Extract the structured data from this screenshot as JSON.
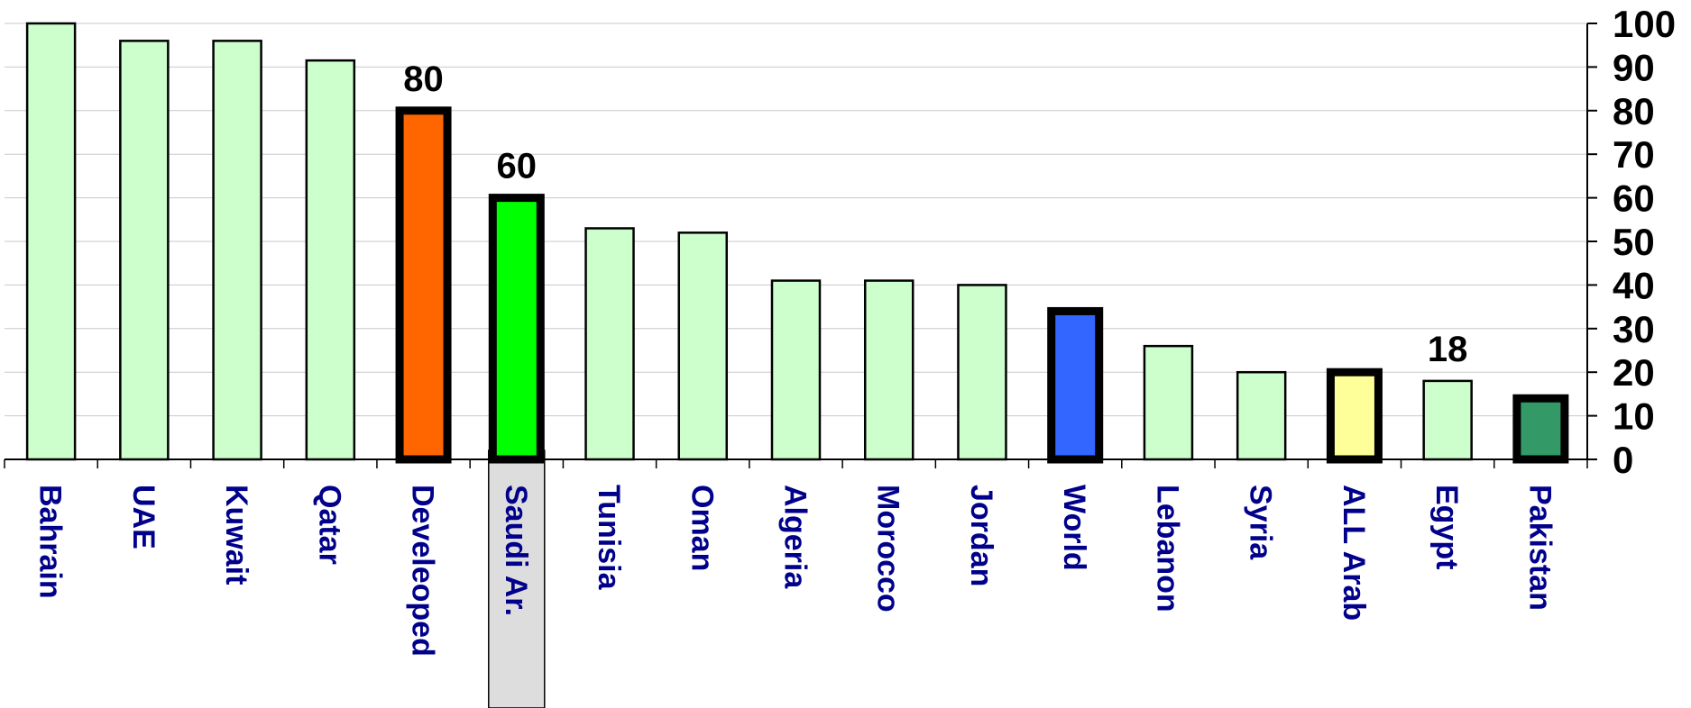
{
  "chart_data": {
    "type": "bar",
    "categories": [
      "Bahrain",
      "UAE",
      "Kuwait",
      "Qatar",
      "Develeoped",
      "Saudi Ar.",
      "Tunisia",
      "Oman",
      "Algeria",
      "Morocco",
      "Jordan",
      "World",
      "Lebanon",
      "Syria",
      "ALL Arab",
      "Egypt",
      "Pakistan"
    ],
    "values": [
      100,
      96,
      96,
      91.5,
      80,
      60,
      53,
      52,
      41,
      41,
      40,
      34,
      26,
      20,
      20,
      18,
      14
    ],
    "bar_colors": [
      "#CCFFCC",
      "#CCFFCC",
      "#CCFFCC",
      "#CCFFCC",
      "#FF6600",
      "#00FF00",
      "#CCFFCC",
      "#CCFFCC",
      "#CCFFCC",
      "#CCFFCC",
      "#CCFFCC",
      "#3366FF",
      "#CCFFCC",
      "#CCFFCC",
      "#FFFF99",
      "#CCFFCC",
      "#339966"
    ],
    "highlighted": [
      "Develeoped",
      "Saudi Ar.",
      "World",
      "ALL Arab",
      "Pakistan"
    ],
    "selected_category": "Saudi Ar.",
    "data_labels": [
      {
        "category": "Develeoped",
        "text": "80"
      },
      {
        "category": "Saudi Ar.",
        "text": "60"
      },
      {
        "category": "Egypt",
        "text": "18"
      }
    ],
    "yticks": [
      "0",
      "10",
      "20",
      "30",
      "40",
      "50",
      "60",
      "70",
      "80",
      "90",
      "100"
    ],
    "ylim": [
      0,
      100
    ],
    "y_axis_position": "right",
    "grid": true,
    "title": "",
    "xlabel": "",
    "ylabel": ""
  }
}
